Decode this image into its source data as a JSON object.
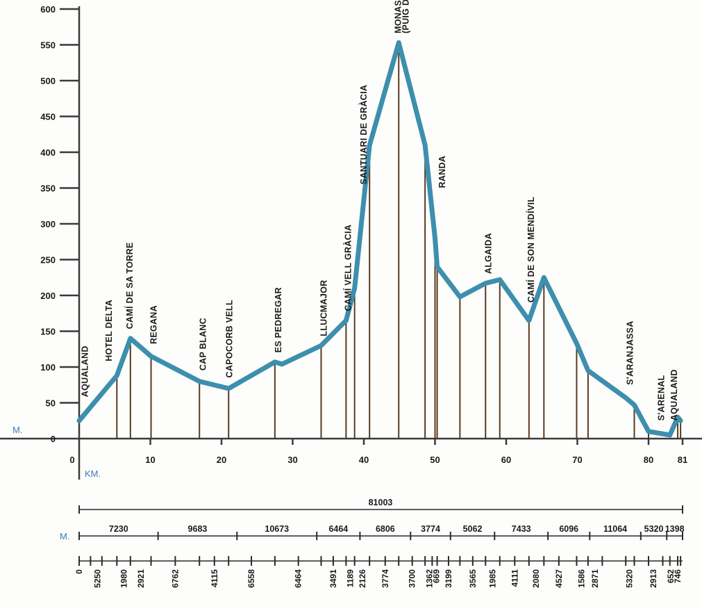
{
  "chart_data": {
    "type": "line",
    "x_unit": "KM.",
    "y_unit": "M.",
    "xlim": [
      0,
      85
    ],
    "ylim": [
      0,
      600
    ],
    "yticks": [
      0,
      50,
      100,
      150,
      200,
      250,
      300,
      350,
      400,
      450,
      500,
      550,
      600
    ],
    "xticks": [
      0,
      10,
      20,
      30,
      40,
      50,
      60,
      70,
      80
    ],
    "x_end_label": "81",
    "line_color": "#3d8fad",
    "drop_line_color": "#5a3a1f",
    "profile": {
      "x": [
        0,
        5.3,
        7.2,
        10.1,
        16.9,
        21.0,
        27.5,
        28.5,
        34.0,
        37.5,
        38.7,
        40.8,
        41.1,
        44.9,
        48.6,
        50.0,
        50.3,
        53.5,
        57.1,
        59.1,
        63.2,
        65.3,
        69.9,
        71.5,
        76.8,
        78.0,
        80.0,
        83.0,
        84.1,
        84.5
      ],
      "y": [
        25,
        88,
        140,
        115,
        80,
        70,
        107,
        104,
        130,
        165,
        210,
        410,
        420,
        553,
        410,
        280,
        240,
        198,
        217,
        222,
        165,
        225,
        133,
        95,
        57,
        47,
        10,
        5,
        30,
        25
      ]
    },
    "drop_lines_x": [
      5.3,
      7.2,
      10.1,
      16.9,
      21.0,
      27.5,
      34.0,
      37.5,
      38.7,
      40.8,
      44.9,
      48.6,
      50.0,
      50.3,
      53.5,
      57.1,
      59.1,
      63.2,
      65.3,
      69.9,
      71.5,
      78.0,
      80.0,
      84.1,
      84.5
    ],
    "places": [
      {
        "name": "AQUALAND",
        "x": 1.2,
        "y": 58
      },
      {
        "name": "HOTEL DELTA",
        "x": 4.6,
        "y": 108
      },
      {
        "name": "CAMÍ DE SA TORRE",
        "x": 7.5,
        "y": 153
      },
      {
        "name": "REGANA",
        "x": 10.9,
        "y": 132
      },
      {
        "name": "CAP BLANC",
        "x": 17.8,
        "y": 95
      },
      {
        "name": "CAPOCORB VELL",
        "x": 21.5,
        "y": 85
      },
      {
        "name": "ES PEDREGAR",
        "x": 28.4,
        "y": 120
      },
      {
        "name": "LLUCMAJOR",
        "x": 34.8,
        "y": 143
      },
      {
        "name": "CAMÍ VELL GRÀCIA",
        "x": 38.2,
        "y": 178
      },
      {
        "name": "SANTUARI DE GRÀCIA",
        "x": 40.4,
        "y": 355
      },
      {
        "name": "MONASTERI DE CURA",
        "x": 45.2,
        "y": 566
      },
      {
        "name": "(PUIG DE RANDA)",
        "x": 46.3,
        "y": 566
      },
      {
        "name": "RANDA",
        "x": 51.4,
        "y": 350
      },
      {
        "name": "ALGAIDA",
        "x": 57.9,
        "y": 230
      },
      {
        "name": "CAMÍ DE SON MENDÍVIL",
        "x": 63.9,
        "y": 190
      },
      {
        "name": "S'ARANJASSA",
        "x": 77.8,
        "y": 75
      },
      {
        "name": "S'ARENAL",
        "x": 82.2,
        "y": 25
      },
      {
        "name": "AQUALAND",
        "x": 84.0,
        "y": 25
      }
    ],
    "total_distance": "81003",
    "distance_unit": "M.",
    "segments": [
      {
        "label": "7230",
        "start": 0,
        "end": 17.0
      },
      {
        "label": "9683",
        "start": 17.0,
        "end": 34.0
      },
      {
        "label": "10673",
        "start": 34.0,
        "end": 51.2
      },
      {
        "label": "6464",
        "start": 51.2,
        "end": 60.5
      },
      {
        "label": "6806",
        "start": 60.5,
        "end": 71.4
      },
      {
        "label": "3774",
        "start": 71.4,
        "end": 80.0
      },
      {
        "label": "5062",
        "start": 80.0,
        "end": 89.5
      },
      {
        "label": "7433",
        "start": 89.5,
        "end": 101.0
      },
      {
        "label": "6096",
        "start": 101.0,
        "end": 110.0
      },
      {
        "label": "11064",
        "start": 110.0,
        "end": 121.0
      },
      {
        "label": "5320",
        "start": 121.0,
        "end": 126.6
      },
      {
        "label": "1398",
        "start": 126.6,
        "end": 130.0
      }
    ],
    "subsegments": [
      {
        "label": "0",
        "x": 0
      },
      {
        "label": "5250",
        "x": 2.6
      },
      {
        "label": "1980",
        "x": 6.3
      },
      {
        "label": "2921",
        "x": 8.7
      },
      {
        "label": "6762",
        "x": 13.5
      },
      {
        "label": "4115",
        "x": 19.0
      },
      {
        "label": "6558",
        "x": 24.2
      },
      {
        "label": "6464",
        "x": 30.8
      },
      {
        "label": "3491",
        "x": 35.7
      },
      {
        "label": "1189",
        "x": 38.1
      },
      {
        "label": "2126",
        "x": 39.8
      },
      {
        "label": "3774",
        "x": 43.0
      },
      {
        "label": "3700",
        "x": 46.8
      },
      {
        "label": "1362",
        "x": 49.2
      },
      {
        "label": "669",
        "x": 50.2
      },
      {
        "label": "3199",
        "x": 51.9
      },
      {
        "label": "3565",
        "x": 55.3
      },
      {
        "label": "1985",
        "x": 58.1
      },
      {
        "label": "4111",
        "x": 61.2
      },
      {
        "label": "2080",
        "x": 64.2
      },
      {
        "label": "4527",
        "x": 67.4
      },
      {
        "label": "1586",
        "x": 70.6
      },
      {
        "label": "2871",
        "x": 72.5
      },
      {
        "label": "5320",
        "x": 77.3
      },
      {
        "label": "2913",
        "x": 80.7
      },
      {
        "label": "652",
        "x": 83.1
      },
      {
        "label": "746",
        "x": 84.1
      }
    ],
    "subsegment_ticks": [
      0,
      1.6,
      3.2,
      5.3,
      7.2,
      10.1,
      13.5,
      16.9,
      19.0,
      21.0,
      24.2,
      27.5,
      30.8,
      34.0,
      35.7,
      37.5,
      38.7,
      40.8,
      43.0,
      44.9,
      46.8,
      48.6,
      49.6,
      50.3,
      51.9,
      53.5,
      55.3,
      57.1,
      59.1,
      61.2,
      63.2,
      65.3,
      67.4,
      69.9,
      71.5,
      73.5,
      76.8,
      78.0,
      80.0,
      82.0,
      83.0,
      84.1,
      84.5
    ]
  }
}
